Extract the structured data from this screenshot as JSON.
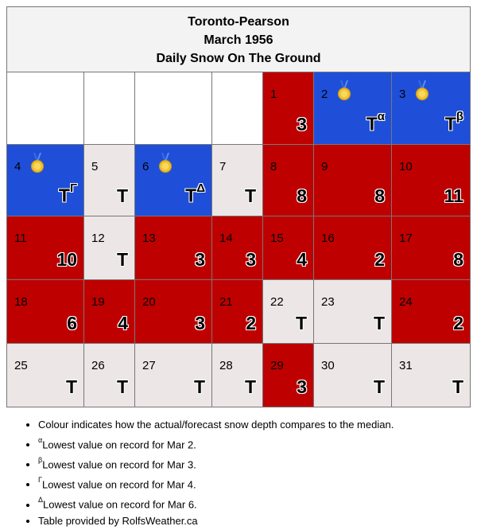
{
  "title": {
    "station": "Toronto-Pearson",
    "month": "March 1956",
    "subject": "Daily Snow On The Ground"
  },
  "colors": {
    "above": "#bf0000",
    "record": "#1f4fd9",
    "below": "#ece6e7",
    "empty": "#ffffff"
  },
  "legend": {
    "colour": "Colour indicates how the actual/forecast snow depth compares to the median.",
    "notes": [
      {
        "marker": "α",
        "text": "Lowest value on record for Mar 2."
      },
      {
        "marker": "β",
        "text": "Lowest value on record for Mar 3."
      },
      {
        "marker": "Γ",
        "text": "Lowest value on record for Mar 4."
      },
      {
        "marker": "Δ",
        "text": "Lowest value on record for Mar 6."
      }
    ],
    "credit": "Table provided by RolfsWeather.ca"
  },
  "days": [
    {
      "day": "1",
      "value": "3",
      "status": "above"
    },
    {
      "day": "2",
      "value": "T",
      "note": "α",
      "status": "record",
      "medal": true
    },
    {
      "day": "3",
      "value": "T",
      "note": "β",
      "status": "record",
      "medal": true
    },
    {
      "day": "4",
      "value": "T",
      "note": "Γ",
      "status": "record",
      "medal": true
    },
    {
      "day": "5",
      "value": "T",
      "status": "below"
    },
    {
      "day": "6",
      "value": "T",
      "note": "Δ",
      "status": "record",
      "medal": true
    },
    {
      "day": "7",
      "value": "T",
      "status": "below"
    },
    {
      "day": "8",
      "value": "8",
      "status": "above"
    },
    {
      "day": "9",
      "value": "8",
      "status": "above"
    },
    {
      "day": "10",
      "value": "11",
      "status": "above"
    },
    {
      "day": "11",
      "value": "10",
      "status": "above"
    },
    {
      "day": "12",
      "value": "T",
      "status": "below"
    },
    {
      "day": "13",
      "value": "3",
      "status": "above"
    },
    {
      "day": "14",
      "value": "3",
      "status": "above"
    },
    {
      "day": "15",
      "value": "4",
      "status": "above"
    },
    {
      "day": "16",
      "value": "2",
      "status": "above"
    },
    {
      "day": "17",
      "value": "8",
      "status": "above"
    },
    {
      "day": "18",
      "value": "6",
      "status": "above"
    },
    {
      "day": "19",
      "value": "4",
      "status": "above"
    },
    {
      "day": "20",
      "value": "3",
      "status": "above"
    },
    {
      "day": "21",
      "value": "2",
      "status": "above"
    },
    {
      "day": "22",
      "value": "T",
      "status": "below"
    },
    {
      "day": "23",
      "value": "T",
      "status": "below"
    },
    {
      "day": "24",
      "value": "2",
      "status": "above"
    },
    {
      "day": "25",
      "value": "T",
      "status": "below"
    },
    {
      "day": "26",
      "value": "T",
      "status": "below"
    },
    {
      "day": "27",
      "value": "T",
      "status": "below"
    },
    {
      "day": "28",
      "value": "T",
      "status": "below"
    },
    {
      "day": "29",
      "value": "3",
      "status": "above"
    },
    {
      "day": "30",
      "value": "T",
      "status": "below"
    },
    {
      "day": "31",
      "value": "T",
      "status": "below"
    }
  ]
}
